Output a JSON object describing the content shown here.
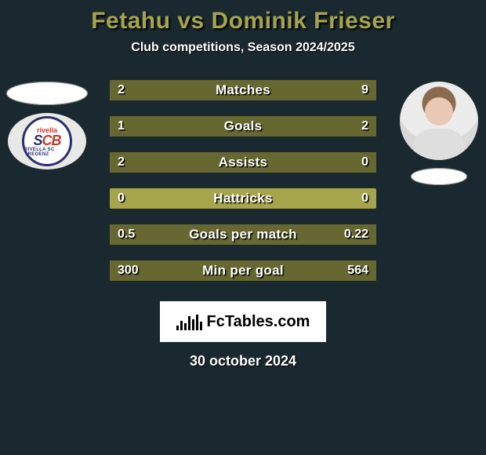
{
  "title": "Fetahu vs Dominik Frieser",
  "subtitle": "Club competitions, Season 2024/2025",
  "date": "30 october 2024",
  "colors": {
    "background": "#1a2930",
    "bar_base": "#a6a54b",
    "bar_fill": "#676731",
    "title_color": "#a6a54b",
    "text_color": "#ffffff"
  },
  "left": {
    "flag_color": "#ffffff",
    "badge": {
      "top": "rivella",
      "main_a": "S",
      "main_b": "CB",
      "bottom": "RIVELLA SC BREGENZ"
    }
  },
  "right": {
    "flag_color": "#ffffff"
  },
  "bars": [
    {
      "label": "Matches",
      "left": "2",
      "right": "9",
      "left_pct": 18,
      "right_pct": 82
    },
    {
      "label": "Goals",
      "left": "1",
      "right": "2",
      "left_pct": 33,
      "right_pct": 67
    },
    {
      "label": "Assists",
      "left": "2",
      "right": "0",
      "left_pct": 100,
      "right_pct": 0
    },
    {
      "label": "Hattricks",
      "left": "0",
      "right": "0",
      "left_pct": 0,
      "right_pct": 0
    },
    {
      "label": "Goals per match",
      "left": "0.5",
      "right": "0.22",
      "left_pct": 69,
      "right_pct": 31
    },
    {
      "label": "Min per goal",
      "left": "300",
      "right": "564",
      "left_pct": 35,
      "right_pct": 65
    }
  ],
  "footer_brand": {
    "prefix": "Fc",
    "suffix": "Tables.com"
  },
  "logo_bar_heights": [
    6,
    12,
    9,
    18,
    14,
    20,
    11
  ]
}
